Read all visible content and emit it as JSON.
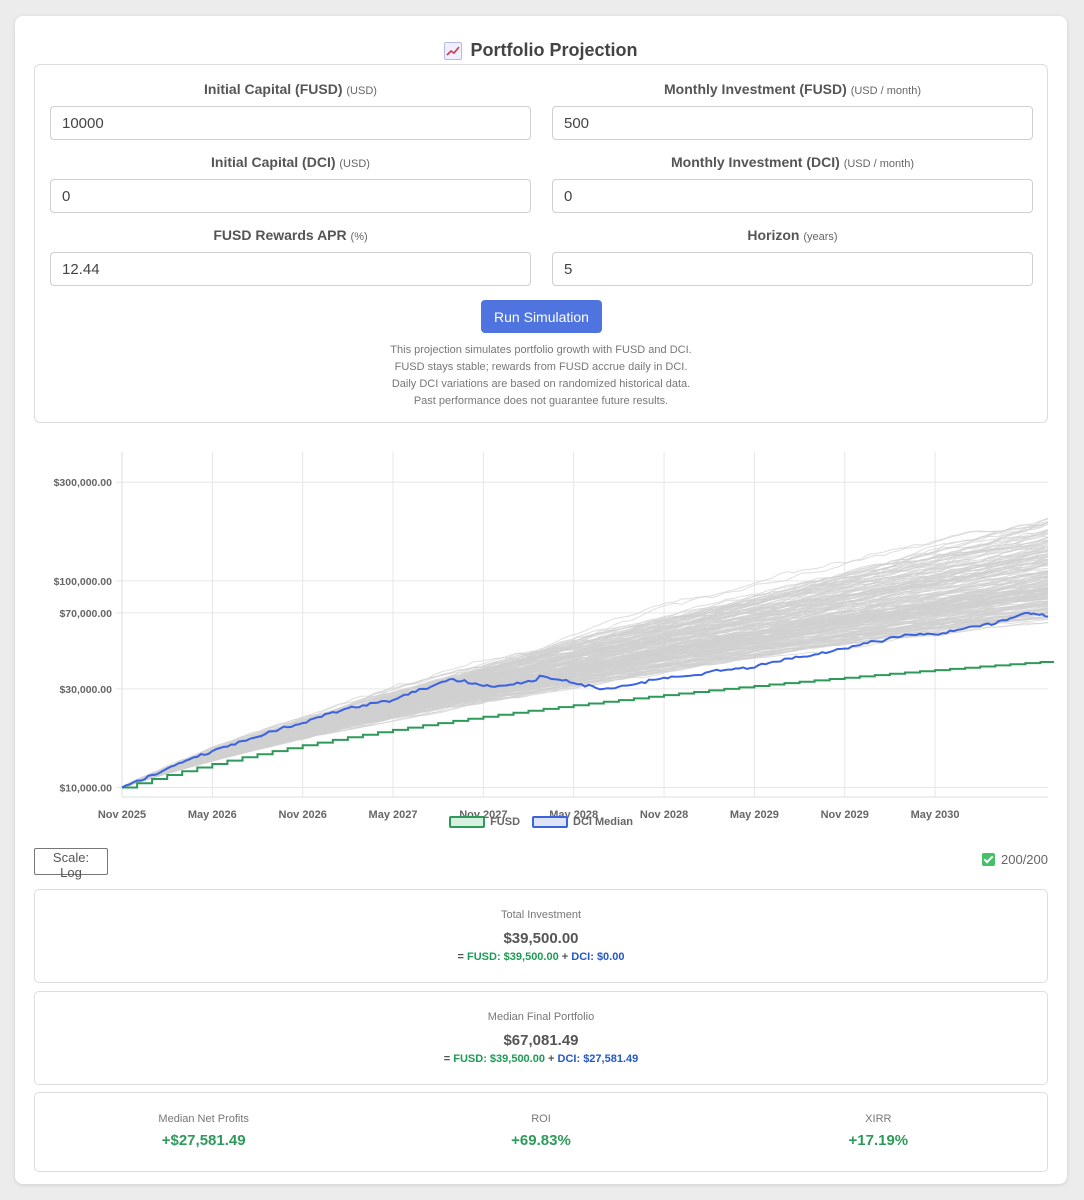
{
  "app": {
    "title": "Portfolio Projection",
    "icon": "chart-increasing-icon"
  },
  "form": {
    "initial_fusd": {
      "label": "Initial Capital (FUSD)",
      "unit": "(USD)",
      "value": "10000"
    },
    "monthly_fusd": {
      "label": "Monthly Investment (FUSD)",
      "unit": "(USD / month)",
      "value": "500"
    },
    "initial_dci": {
      "label": "Initial Capital (DCI)",
      "unit": "(USD)",
      "value": "0"
    },
    "monthly_dci": {
      "label": "Monthly Investment (DCI)",
      "unit": "(USD / month)",
      "value": "0"
    },
    "apr": {
      "label": "FUSD Rewards APR",
      "unit": "(%)",
      "value": "12.44"
    },
    "horizon": {
      "label": "Horizon",
      "unit": "(years)",
      "value": "5"
    },
    "run_label": "Run Simulation",
    "disclaimer": [
      "This projection simulates portfolio growth with FUSD and DCI.",
      "FUSD stays stable; rewards from FUSD accrue daily in DCI.",
      "Daily DCI variations are based on randomized historical data.",
      "Past performance does not guarantee future results."
    ]
  },
  "chart_data": {
    "type": "line",
    "yscale": "log",
    "ylim": [
      9000,
      420000
    ],
    "xlim_months": [
      0,
      61.5
    ],
    "x_tick_labels": [
      "Nov 2025",
      "May 2026",
      "Nov 2026",
      "May 2027",
      "Nov 2027",
      "May 2028",
      "Nov 2028",
      "May 2029",
      "Nov 2029",
      "May 2030"
    ],
    "x_tick_months": [
      0,
      6,
      12,
      18,
      24,
      30,
      36,
      42,
      48,
      54
    ],
    "y_ticks": [
      10000,
      30000,
      70000,
      100000,
      300000
    ],
    "y_tick_labels": [
      "$10,000.00",
      "$30,000.00",
      "$70,000.00",
      "$100,000.00",
      "$300,000.00"
    ],
    "series": [
      {
        "name": "FUSD",
        "color": "#2e9a5a",
        "fill": "#d8f0e0",
        "x": [
          0,
          6,
          12,
          18,
          24,
          30,
          36,
          42,
          48,
          54,
          61.5
        ],
        "values": [
          10000,
          13000,
          16000,
          19000,
          22000,
          25000,
          28000,
          31000,
          34000,
          37000,
          39500
        ]
      },
      {
        "name": "DCI Median",
        "color": "#3b63e0",
        "fill": "#dde4f8",
        "x": [
          0,
          2,
          4,
          6,
          8,
          10,
          12,
          14,
          16,
          18,
          20,
          22,
          24,
          26,
          28,
          30,
          32,
          34,
          36,
          38,
          40,
          42,
          44,
          46,
          48,
          50,
          52,
          54,
          56,
          58,
          60,
          61.5
        ],
        "values": [
          10000,
          11500,
          13200,
          15000,
          16800,
          18700,
          20500,
          23200,
          25000,
          26500,
          30000,
          33500,
          31000,
          31500,
          34500,
          32000,
          30000,
          31500,
          34000,
          35000,
          37000,
          38000,
          42000,
          44000,
          47000,
          51000,
          55000,
          55000,
          59000,
          62000,
          70000,
          67081
        ]
      }
    ],
    "simulation_paths": 200,
    "paths_color": "#d0d0d0"
  },
  "legend": {
    "fusd_label": "FUSD",
    "dci_label": "DCI Median"
  },
  "controls": {
    "scale_label": "Scale: Log",
    "paths_count": "200/200"
  },
  "stats": {
    "total_investment": {
      "label": "Total Investment",
      "value": "$39,500.00",
      "prefix": "=",
      "fusd": "FUSD: $39,500.00",
      "plus": "+",
      "dci": "DCI: $0.00"
    },
    "median_final": {
      "label": "Median Final Portfolio",
      "value": "$67,081.49",
      "prefix": "=",
      "fusd": "FUSD: $39,500.00",
      "plus": "+",
      "dci": "DCI: $27,581.49"
    },
    "metrics": {
      "net_profits_label": "Median Net Profits",
      "net_profits_value": "+$27,581.49",
      "roi_label": "ROI",
      "roi_value": "+69.83%",
      "xirr_label": "XIRR",
      "xirr_value": "+17.19%"
    }
  }
}
